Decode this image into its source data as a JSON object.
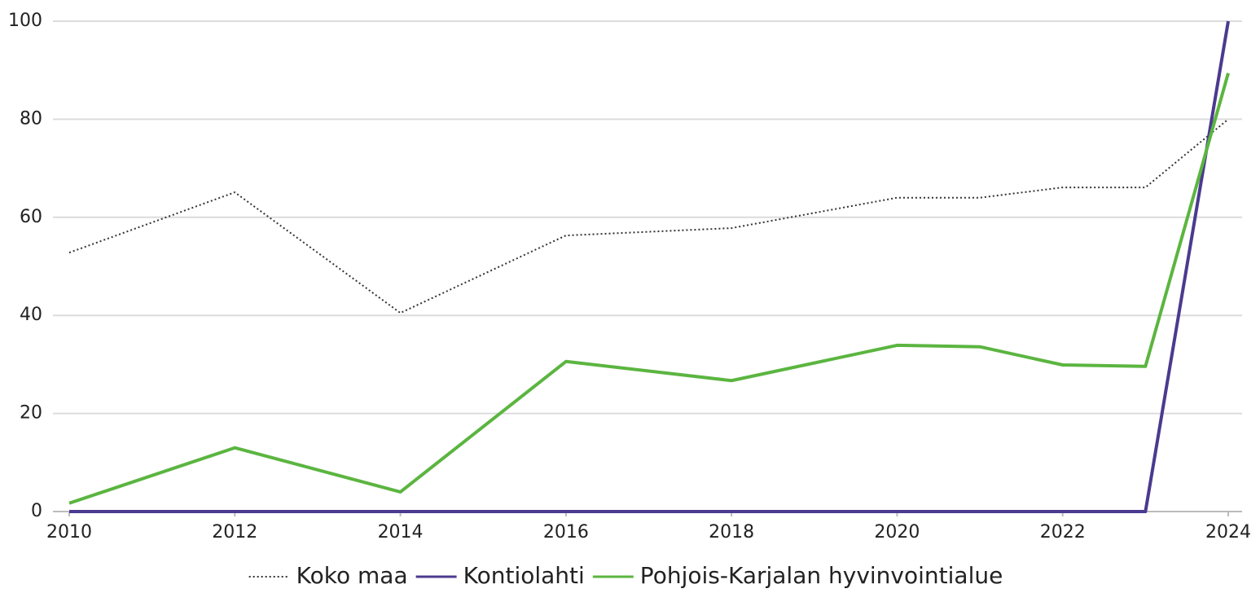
{
  "chart_data": {
    "type": "line",
    "x": [
      2010,
      2012,
      2014,
      2016,
      2018,
      2020,
      2021,
      2022,
      2023,
      2024
    ],
    "series": [
      {
        "name": "Koko maa",
        "color": "#333333",
        "style": "dotted",
        "values": [
          52.8,
          65.1,
          40.5,
          56.3,
          57.8,
          64,
          64,
          66.1,
          66.1,
          80
        ]
      },
      {
        "name": "Kontiolahti",
        "color": "#4b3a8f",
        "style": "solid",
        "values": [
          0,
          0,
          0,
          0,
          0,
          0,
          0,
          0,
          0,
          100
        ]
      },
      {
        "name": "Pohjois-Karjalan hyvinvointialue",
        "color": "#5bb540",
        "style": "solid",
        "values": [
          1.7,
          13,
          4,
          30.6,
          26.7,
          33.9,
          33.6,
          29.9,
          29.6,
          89.4
        ]
      }
    ],
    "xlim": [
      2010,
      2024
    ],
    "xticks": [
      2010,
      2012,
      2014,
      2016,
      2018,
      2020,
      2022,
      2024
    ],
    "ylim": [
      0,
      100
    ],
    "yticks": [
      0,
      20,
      40,
      60,
      80,
      100
    ],
    "grid": true,
    "legend": "bottom"
  }
}
